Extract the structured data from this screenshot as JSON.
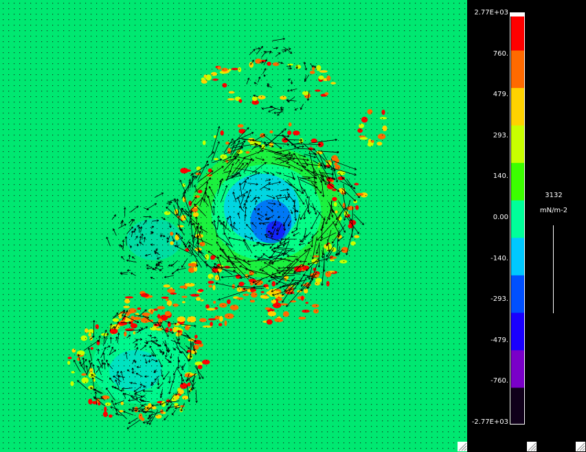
{
  "chart_data": {
    "type": "heatmap",
    "title": "",
    "xlabel": "",
    "ylabel": "",
    "background_color": "#00e871",
    "overlay": "vector field (black arrows) over colour contour field",
    "colorbar": {
      "ticks": [
        "2.77E+03",
        "760.",
        "479.",
        "293.",
        "140.",
        "0.00",
        "-140.",
        "-293.",
        "-479.",
        "-760.",
        "-2.77E+03"
      ],
      "tick_values": [
        2770,
        760,
        479,
        293,
        140,
        0,
        -140,
        -293,
        -479,
        -760,
        -2770
      ],
      "colors": [
        "#ff0000",
        "#ff6a00",
        "#ffd200",
        "#c8ff00",
        "#3cff00",
        "#00ff9a",
        "#00c8ff",
        "#0050ff",
        "#1a00ff",
        "#7a00c8",
        "#10001a"
      ]
    },
    "reference_vector": {
      "value": "3132",
      "units": "mN/m-2"
    },
    "features": [
      {
        "region": "upper cyclone core",
        "cx": 0.57,
        "cy": 0.47,
        "sign": "negative",
        "peak": -760
      },
      {
        "region": "lower-left cyclone core",
        "cx": 0.3,
        "cy": 0.81,
        "sign": "negative",
        "peak": -140
      },
      {
        "region": "high band between vortices",
        "cx": 0.52,
        "cy": 0.68,
        "sign": "positive",
        "peak": 760
      }
    ]
  }
}
